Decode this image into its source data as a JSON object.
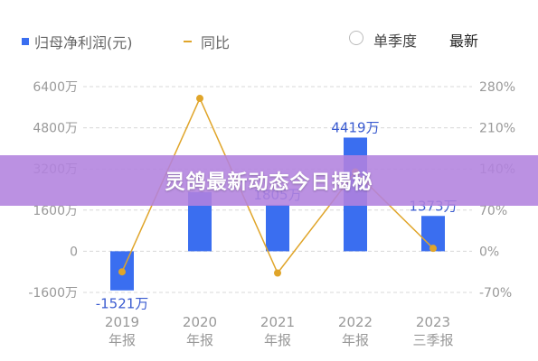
{
  "legend": {
    "profit_label": "归母净利润(元)",
    "yoy_label": "同比"
  },
  "options": {
    "quarter_label": "单季度",
    "latest_label": "最新"
  },
  "banner": {
    "text": "灵鸽最新动态今日揭秘"
  },
  "colors": {
    "bar": "#3a6ef0",
    "line": "#e0a52a",
    "grid": "#d8d8d8",
    "axis_text": "#999999",
    "label_text": "#3a5bd0"
  },
  "chart_data": {
    "type": "bar",
    "categories": [
      "2019",
      "2020",
      "2021",
      "2022",
      "2023"
    ],
    "category_sub": [
      "年报",
      "年报",
      "年报",
      "年报",
      "三季报"
    ],
    "series": [
      {
        "name": "归母净利润(元)",
        "type": "bar",
        "axis": "left",
        "values": [
          -1521,
          2300,
          1805,
          4419,
          1373
        ],
        "labels": [
          "-1521万",
          "",
          "1805万",
          "4419万",
          "1373万"
        ]
      },
      {
        "name": "同比",
        "type": "line",
        "axis": "right",
        "values": [
          -35,
          260,
          -37,
          135,
          5
        ]
      }
    ],
    "left_axis": {
      "ticks": [
        6400,
        4800,
        3200,
        1600,
        0,
        -1600
      ],
      "tick_labels": [
        "6400万",
        "4800万",
        "3200万",
        "1600万",
        "0",
        "-1600万"
      ],
      "ylim": [
        -1600,
        6400
      ]
    },
    "right_axis": {
      "ticks": [
        280,
        210,
        140,
        70,
        0,
        -70
      ],
      "tick_labels": [
        "280%",
        "210%",
        "140%",
        "70%",
        "0%",
        "-70%"
      ],
      "ylim": [
        -70,
        280
      ]
    },
    "grid": true,
    "legend": "top-left"
  }
}
